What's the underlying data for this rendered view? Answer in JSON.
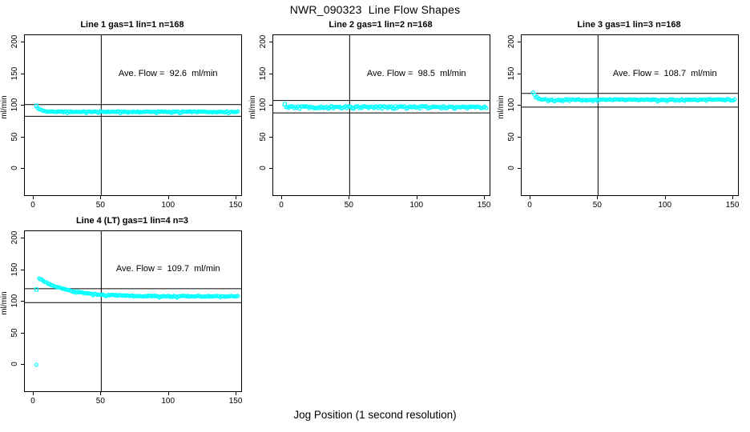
{
  "figure": {
    "main_title": "NWR_090323  Line Flow Shapes",
    "xlabel": "Jog Position (1 second resolution)",
    "point_color": "#00ffff",
    "line_color": "#000000",
    "background": "#ffffff"
  },
  "chart_data": [
    {
      "type": "scatter",
      "title": "Line 1 gas=1 lin=1 n=168",
      "annotation": "Ave. Flow =  92.6  ml/min",
      "ave_flow_ml_min": 92.6,
      "ylabel": "ml/min",
      "x_ticks": [
        0,
        50,
        100,
        150
      ],
      "y_ticks": [
        0,
        50,
        100,
        150,
        200
      ],
      "xlim": [
        -6.5,
        153.5
      ],
      "ylim": [
        -42,
        212
      ],
      "vline_x": 50,
      "hlines": [
        101.9,
        83.3
      ],
      "grid": false,
      "markers": [
        {
          "x": 2,
          "y": 100,
          "shape": "square"
        }
      ],
      "series_model": {
        "x_from": 3,
        "x_to": 151,
        "step": 1,
        "y_start": 96.5,
        "y_steady": 90.4,
        "tau": 3,
        "jitter": 0.7,
        "seed": 1,
        "low_frac": 0.12,
        "low_off": -1.6
      },
      "key_points": [
        [
          2,
          100
        ],
        [
          3,
          96.5
        ],
        [
          4,
          94.4
        ],
        [
          5,
          92.9
        ],
        [
          6,
          92.6
        ],
        [
          8,
          91.5
        ],
        [
          10,
          91
        ],
        [
          20,
          90.5
        ],
        [
          50,
          90.4
        ],
        [
          100,
          90.4
        ],
        [
          151,
          90.4
        ]
      ],
      "annotation_pos": {
        "x": 100,
        "y": 149
      }
    },
    {
      "type": "scatter",
      "title": "Line 2 gas=1 lin=2 n=168",
      "annotation": "Ave. Flow =  98.5  ml/min",
      "ave_flow_ml_min": 98.5,
      "ylabel": "ml/min",
      "x_ticks": [
        0,
        50,
        100,
        150
      ],
      "y_ticks": [
        0,
        50,
        100,
        150,
        200
      ],
      "xlim": [
        -6.5,
        153.5
      ],
      "ylim": [
        -42,
        212
      ],
      "vline_x": 50,
      "hlines": [
        108.4,
        88.7
      ],
      "grid": false,
      "markers": [
        {
          "x": 2,
          "y": 102.5,
          "shape": "square"
        }
      ],
      "series_model": {
        "x_from": 3,
        "x_to": 151,
        "step": 1,
        "y_start": 100.5,
        "y_steady": 98.4,
        "tau": 2,
        "jitter": 0.9,
        "seed": 2,
        "low_frac": 0.28,
        "low_off": -2.4
      },
      "key_points": [
        [
          2,
          102.5
        ],
        [
          3,
          100.5
        ],
        [
          4,
          99.2
        ],
        [
          5,
          98.8
        ],
        [
          10,
          98.4
        ],
        [
          50,
          98.4
        ],
        [
          100,
          98.4
        ],
        [
          151,
          98.4
        ]
      ],
      "annotation_pos": {
        "x": 100,
        "y": 149
      }
    },
    {
      "type": "scatter",
      "title": "Line 3 gas=1 lin=3 n=168",
      "annotation": "Ave. Flow =  108.7  ml/min",
      "ave_flow_ml_min": 108.7,
      "ylabel": "ml/min",
      "x_ticks": [
        0,
        50,
        100,
        150
      ],
      "y_ticks": [
        0,
        50,
        100,
        150,
        200
      ],
      "xlim": [
        -6.5,
        153.5
      ],
      "ylim": [
        -42,
        212
      ],
      "vline_x": 50,
      "hlines": [
        119.6,
        97.8
      ],
      "grid": false,
      "markers": [
        {
          "x": 2,
          "y": 121,
          "shape": "circle"
        }
      ],
      "series_model": {
        "x_from": 3,
        "x_to": 151,
        "step": 1,
        "y_start": 117,
        "y_steady": 109.6,
        "tau": 3,
        "jitter": 0.8,
        "seed": 3,
        "low_frac": 0.2,
        "low_off": -1.8
      },
      "key_points": [
        [
          2,
          121
        ],
        [
          3,
          117
        ],
        [
          4,
          114.6
        ],
        [
          5,
          112.9
        ],
        [
          6,
          112.3
        ],
        [
          8,
          110.9
        ],
        [
          10,
          110.3
        ],
        [
          20,
          109.7
        ],
        [
          50,
          109.6
        ],
        [
          100,
          109.6
        ],
        [
          151,
          109.6
        ]
      ],
      "annotation_pos": {
        "x": 100,
        "y": 149
      }
    },
    {
      "type": "scatter",
      "title": "Line 4 (LT) gas=1 lin=4 n=3",
      "annotation": "Ave. Flow =  109.7  ml/min",
      "ave_flow_ml_min": 109.7,
      "ylabel": "ml/min",
      "x_ticks": [
        0,
        50,
        100,
        150
      ],
      "y_ticks": [
        0,
        50,
        100,
        150,
        200
      ],
      "xlim": [
        -6.5,
        153.5
      ],
      "ylim": [
        -42,
        212
      ],
      "vline_x": 50,
      "hlines": [
        120.7,
        98.7
      ],
      "grid": false,
      "markers": [
        {
          "x": 2,
          "y": 119.5,
          "shape": "square"
        },
        {
          "x": 2,
          "y": 0,
          "shape": "circle"
        }
      ],
      "series_model": {
        "x_from": 4,
        "x_to": 151,
        "step": 1,
        "y_start": 137.5,
        "y_steady": 108.6,
        "tau": 20,
        "jitter": 0.8,
        "seed": 4,
        "low_frac": 0.1,
        "low_off": -1.4
      },
      "key_points": [
        [
          2,
          0
        ],
        [
          2,
          119.5
        ],
        [
          4,
          137.5
        ],
        [
          6,
          135
        ],
        [
          8,
          132.5
        ],
        [
          10,
          130
        ],
        [
          15,
          125.5
        ],
        [
          20,
          121.6
        ],
        [
          25,
          118.4
        ],
        [
          30,
          115.9
        ],
        [
          40,
          112.7
        ],
        [
          50,
          111.5
        ],
        [
          75,
          109.5
        ],
        [
          100,
          108.9
        ],
        [
          125,
          108.7
        ],
        [
          151,
          108.6
        ]
      ],
      "annotation_pos": {
        "x": 100,
        "y": 150
      }
    }
  ]
}
